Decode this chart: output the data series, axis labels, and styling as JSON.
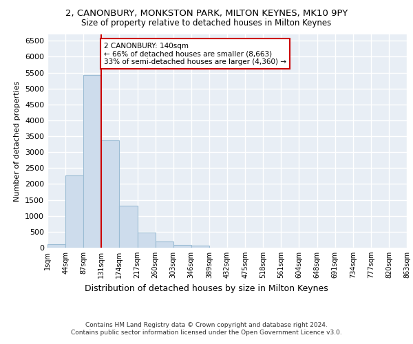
{
  "title1": "2, CANONBURY, MONKSTON PARK, MILTON KEYNES, MK10 9PY",
  "title2": "Size of property relative to detached houses in Milton Keynes",
  "xlabel": "Distribution of detached houses by size in Milton Keynes",
  "ylabel": "Number of detached properties",
  "footer1": "Contains HM Land Registry data © Crown copyright and database right 2024.",
  "footer2": "Contains public sector information licensed under the Open Government Licence v3.0.",
  "annotation_line1": "2 CANONBURY: 140sqm",
  "annotation_line2": "← 66% of detached houses are smaller (8,663)",
  "annotation_line3": "33% of semi-detached houses are larger (4,360) →",
  "bin_labels": [
    "1sqm",
    "44sqm",
    "87sqm",
    "131sqm",
    "174sqm",
    "217sqm",
    "260sqm",
    "303sqm",
    "346sqm",
    "389sqm",
    "432sqm",
    "475sqm",
    "518sqm",
    "561sqm",
    "604sqm",
    "648sqm",
    "691sqm",
    "734sqm",
    "777sqm",
    "820sqm",
    "863sqm"
  ],
  "values": [
    100,
    2280,
    5420,
    3380,
    1310,
    480,
    195,
    95,
    60,
    0,
    0,
    0,
    0,
    0,
    0,
    0,
    0,
    0,
    0,
    0
  ],
  "bar_color": "#cddcec",
  "bar_edge_color": "#9bbcd4",
  "vline_color": "#cc0000",
  "vline_bin_index": 3,
  "bg_color": "#e8eef5",
  "grid_color": "#ffffff",
  "ylim": [
    0,
    6700
  ],
  "yticks": [
    0,
    500,
    1000,
    1500,
    2000,
    2500,
    3000,
    3500,
    4000,
    4500,
    5000,
    5500,
    6000,
    6500
  ]
}
